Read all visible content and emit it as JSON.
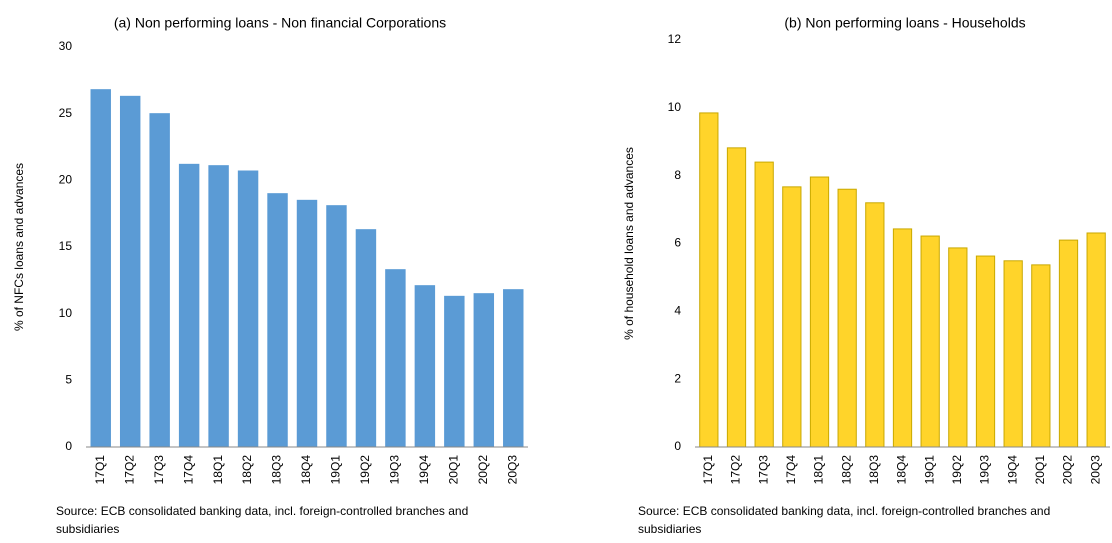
{
  "chart_data": [
    {
      "type": "bar",
      "title": "(a) Non performing  loans - Non financial Corporations",
      "y_label": "% of NFCs  loans and advances",
      "categories": [
        "17Q1",
        "17Q2",
        "17Q3",
        "17Q4",
        "18Q1",
        "18Q2",
        "18Q3",
        "18Q4",
        "19Q1",
        "19Q2",
        "19Q3",
        "19Q4",
        "20Q1",
        "20Q2",
        "20Q3"
      ],
      "values": [
        26.8,
        26.3,
        25.0,
        21.2,
        21.1,
        20.7,
        19.0,
        18.5,
        18.1,
        16.3,
        13.3,
        12.1,
        11.3,
        11.5,
        11.8
      ],
      "color": "#5b9bd5",
      "ylim": [
        0,
        30
      ],
      "yticks": [
        0,
        5,
        10,
        15,
        20,
        25,
        30
      ],
      "source": "Source: ECB consolidated banking data, incl. foreign-controlled branches and subsidiaries"
    },
    {
      "type": "bar",
      "title": "(b) Non performing  loans - Households",
      "y_label": "% of household loans and advances",
      "categories": [
        "17Q1",
        "17Q2",
        "17Q3",
        "17Q4",
        "18Q1",
        "18Q2",
        "18Q3",
        "18Q4",
        "19Q1",
        "19Q2",
        "19Q3",
        "19Q4",
        "20Q1",
        "20Q2",
        "20Q3"
      ],
      "values": [
        9.85,
        8.82,
        8.4,
        7.67,
        7.96,
        7.6,
        7.2,
        6.43,
        6.22,
        5.87,
        5.63,
        5.49,
        5.37,
        6.1,
        6.31
      ],
      "color": "#ffd42a",
      "ylim": [
        0,
        12
      ],
      "yticks": [
        0,
        2,
        4,
        6,
        8,
        10,
        12
      ],
      "source": "Source: ECB consolidated banking data, incl. foreign-controlled branches and subsidiaries"
    }
  ]
}
